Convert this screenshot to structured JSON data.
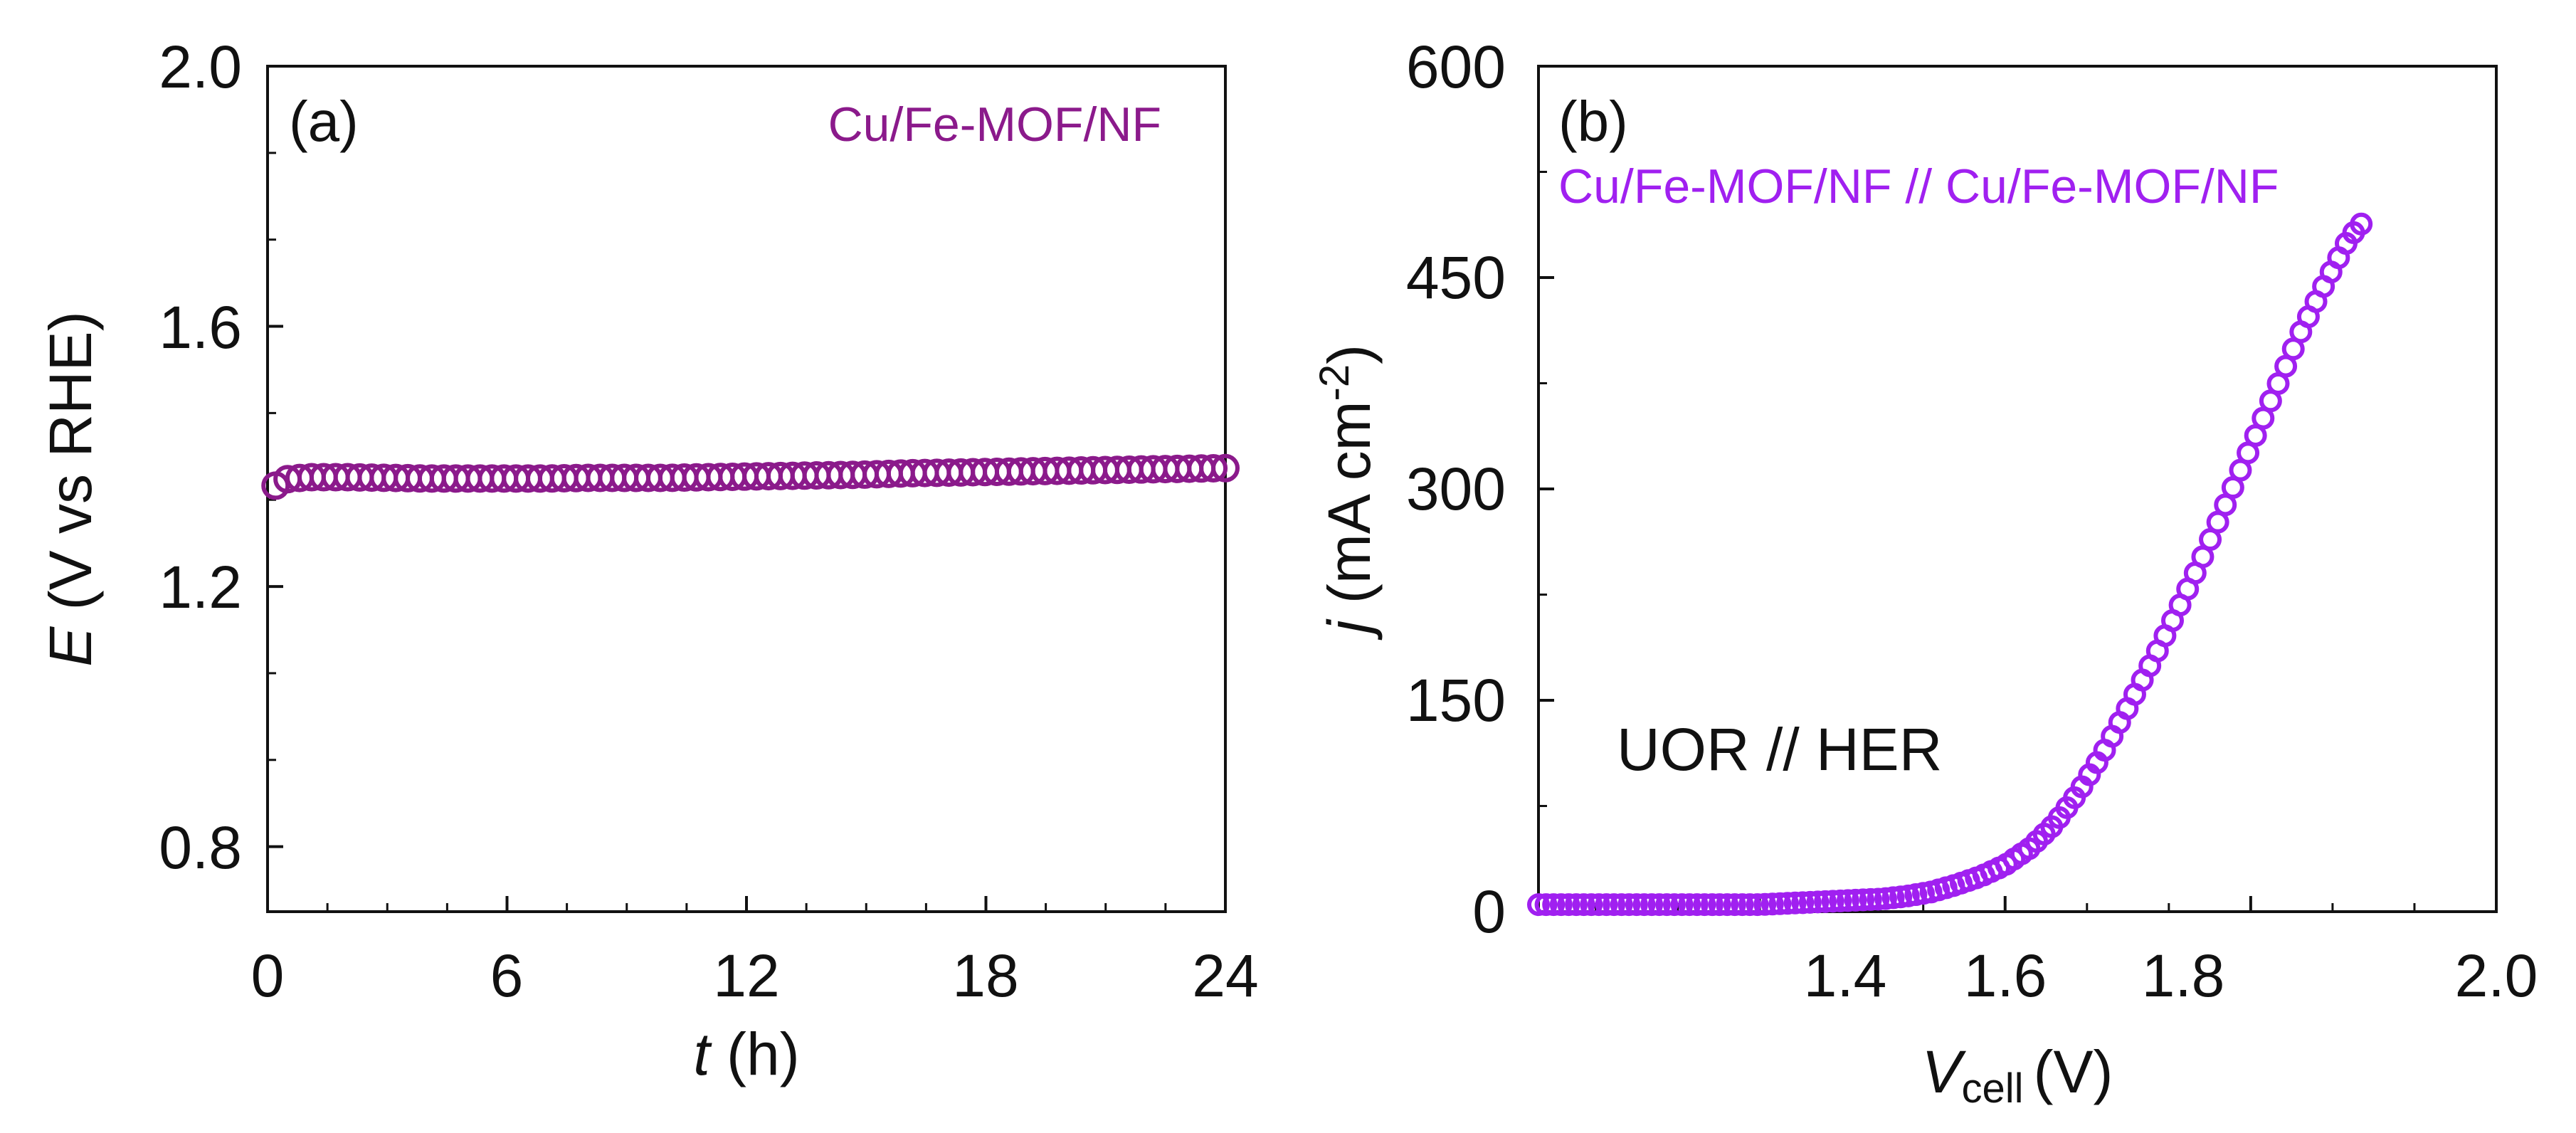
{
  "chart_data": [
    {
      "panel": "(a)",
      "type": "scatter",
      "title": "",
      "xlabel_italic": "t",
      "xlabel_rest": "(h)",
      "ylabel_italic": "E",
      "ylabel_rest": "(V vs RHE)",
      "xlim": [
        0,
        24
      ],
      "ylim": [
        0.7,
        2.0
      ],
      "xticks": [
        0,
        6,
        12,
        18,
        24
      ],
      "xtick_labels": [
        "0",
        "6",
        "12",
        "18",
        "24"
      ],
      "yticks": [
        0.8,
        1.2,
        1.6,
        2.0
      ],
      "ytick_labels": [
        "0.8",
        "1.2",
        "1.6",
        "2.0"
      ],
      "grid": false,
      "legend_text": "Cu/Fe-MOF/NF",
      "legend_position": "top-right",
      "color": "#8B1A8B",
      "series": [
        {
          "name": "Cu/Fe-MOF/NF",
          "x": [
            0.2,
            0.5,
            1,
            2,
            3,
            4,
            5,
            6,
            7,
            8,
            9,
            10,
            11,
            12,
            13,
            14,
            15,
            16,
            17,
            18,
            19,
            20,
            21,
            22,
            23,
            24
          ],
          "y": [
            1.355,
            1.365,
            1.368,
            1.368,
            1.367,
            1.366,
            1.366,
            1.366,
            1.366,
            1.367,
            1.367,
            1.367,
            1.368,
            1.369,
            1.37,
            1.371,
            1.372,
            1.374,
            1.375,
            1.376,
            1.377,
            1.378,
            1.379,
            1.38,
            1.381,
            1.382
          ]
        }
      ]
    },
    {
      "panel": "(b)",
      "type": "scatter",
      "title": "",
      "xlabel_italic": "V",
      "xlabel_sub": "cell",
      "xlabel_rest": "(V)",
      "ylabel_italic": "j",
      "ylabel_rest": "(mA cm",
      "ylabel_sup": "-2",
      "ylabel_close": ")",
      "xlim": [
        1.22,
        2.0
      ],
      "ylim": [
        0,
        600
      ],
      "xticks": [
        1.4,
        1.6,
        1.8,
        2.0
      ],
      "xtick_labels": [
        "1.4",
        "1.6",
        "1.8",
        "2.0"
      ],
      "yticks": [
        0,
        150,
        300,
        450,
        600
      ],
      "ytick_labels": [
        "0",
        "150",
        "300",
        "450",
        "600"
      ],
      "grid": false,
      "legend_text": "Cu/Fe-MOF/NF // Cu/Fe-MOF/NF",
      "legend_position": "top-left",
      "annotation": "UOR // HER",
      "color": "#A020F0",
      "series": [
        {
          "name": "Cu/Fe-MOF/NF // Cu/Fe-MOF/NF",
          "x": [
            1.22,
            1.25,
            1.3,
            1.35,
            1.4,
            1.45,
            1.5,
            1.52,
            1.54,
            1.56,
            1.58,
            1.6,
            1.62,
            1.64,
            1.66,
            1.68,
            1.7,
            1.72,
            1.74,
            1.76,
            1.78,
            1.8,
            1.82,
            1.84,
            1.86,
            1.88,
            1.89
          ],
          "y": [
            5,
            5,
            5,
            5,
            5,
            7,
            9,
            11,
            14,
            19,
            25,
            33,
            45,
            62,
            85,
            113,
            145,
            178,
            213,
            250,
            290,
            330,
            370,
            410,
            445,
            478,
            488
          ]
        }
      ]
    }
  ]
}
